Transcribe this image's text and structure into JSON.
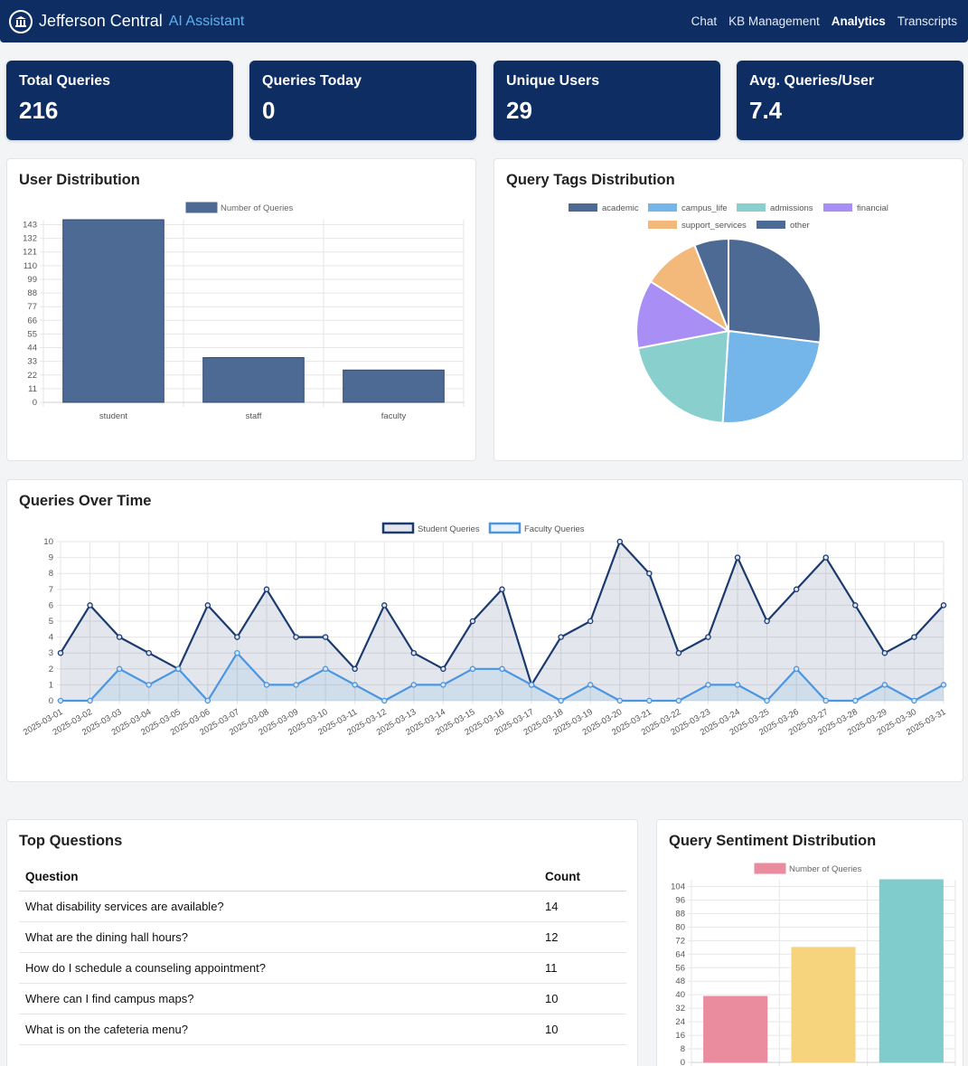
{
  "header": {
    "brand": "Jefferson Central",
    "brand_sub": "AI Assistant",
    "nav": [
      {
        "label": "Chat",
        "active": false
      },
      {
        "label": "KB Management",
        "active": false
      },
      {
        "label": "Analytics",
        "active": true
      },
      {
        "label": "Transcripts",
        "active": false
      }
    ]
  },
  "stats": [
    {
      "label": "Total Queries",
      "value": "216"
    },
    {
      "label": "Queries Today",
      "value": "0"
    },
    {
      "label": "Unique Users",
      "value": "29"
    },
    {
      "label": "Avg. Queries/User",
      "value": "7.4"
    }
  ],
  "user_distribution": {
    "title": "User Distribution"
  },
  "tags_distribution": {
    "title": "Query Tags Distribution"
  },
  "queries_over_time": {
    "title": "Queries Over Time"
  },
  "top_questions": {
    "title": "Top Questions",
    "col_question": "Question",
    "col_count": "Count",
    "rows": [
      {
        "question": "What disability services are available?",
        "count": "14"
      },
      {
        "question": "What are the dining hall hours?",
        "count": "12"
      },
      {
        "question": "How do I schedule a counseling appointment?",
        "count": "11"
      },
      {
        "question": "Where can I find campus maps?",
        "count": "10"
      },
      {
        "question": "What is on the cafeteria menu?",
        "count": "10"
      }
    ]
  },
  "sentiment": {
    "title": "Query Sentiment Distribution"
  },
  "chart_data": [
    {
      "type": "bar",
      "title": "User Distribution",
      "legend": "Number of Queries",
      "categories": [
        "student",
        "staff",
        "faculty"
      ],
      "values": [
        147,
        36,
        26
      ],
      "yticks": [
        0,
        11,
        22,
        33,
        44,
        55,
        66,
        77,
        88,
        99,
        110,
        121,
        132,
        143
      ],
      "ylim": [
        0,
        147
      ],
      "color": "#4c6a94",
      "grid": true
    },
    {
      "type": "pie",
      "title": "Query Tags Distribution",
      "labels": [
        "academic",
        "campus_life",
        "admissions",
        "financial",
        "support_services",
        "other"
      ],
      "values": [
        27,
        24,
        21,
        12,
        10,
        6
      ],
      "colors": [
        "#4c6a94",
        "#74b5ea",
        "#88cfcd",
        "#a98ef5",
        "#f3b97a",
        "#4c6a94"
      ],
      "legend_position": "top"
    },
    {
      "type": "line",
      "title": "Queries Over Time",
      "x": [
        "2025-03-01",
        "2025-03-02",
        "2025-03-03",
        "2025-03-04",
        "2025-03-05",
        "2025-03-06",
        "2025-03-07",
        "2025-03-08",
        "2025-03-09",
        "2025-03-10",
        "2025-03-11",
        "2025-03-12",
        "2025-03-13",
        "2025-03-14",
        "2025-03-15",
        "2025-03-16",
        "2025-03-17",
        "2025-03-18",
        "2025-03-19",
        "2025-03-20",
        "2025-03-21",
        "2025-03-22",
        "2025-03-23",
        "2025-03-24",
        "2025-03-25",
        "2025-03-26",
        "2025-03-27",
        "2025-03-28",
        "2025-03-29",
        "2025-03-30",
        "2025-03-31"
      ],
      "series": [
        {
          "name": "Student Queries",
          "color": "#1b3a6e",
          "values": [
            3,
            6,
            4,
            3,
            2,
            6,
            4,
            7,
            4,
            4,
            2,
            6,
            3,
            2,
            5,
            7,
            1,
            4,
            5,
            10,
            8,
            3,
            4,
            9,
            5,
            7,
            9,
            6,
            3,
            4,
            6
          ]
        },
        {
          "name": "Faculty Queries",
          "color": "#4a96e0",
          "values": [
            0,
            0,
            2,
            1,
            2,
            0,
            3,
            1,
            1,
            2,
            1,
            0,
            1,
            1,
            2,
            2,
            1,
            0,
            1,
            0,
            0,
            0,
            1,
            1,
            0,
            2,
            0,
            0,
            1,
            0,
            1
          ]
        }
      ],
      "ylim": [
        0,
        10
      ],
      "yticks": [
        0,
        1,
        2,
        3,
        4,
        5,
        6,
        7,
        8,
        9,
        10
      ],
      "grid": true
    },
    {
      "type": "bar",
      "title": "Query Sentiment Distribution",
      "legend": "Number of Queries",
      "values": [
        39,
        68,
        108
      ],
      "colors": [
        "#ea8b9e",
        "#f6d47e",
        "#80cbcb"
      ],
      "yticks": [
        0,
        8,
        16,
        24,
        32,
        40,
        48,
        56,
        64,
        72,
        80,
        88,
        96,
        104
      ],
      "ylim": [
        0,
        108
      ],
      "grid": true
    }
  ]
}
